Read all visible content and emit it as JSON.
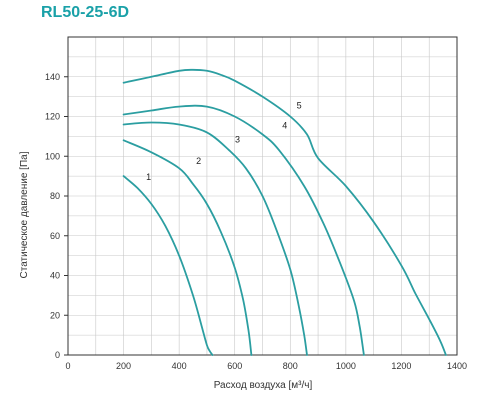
{
  "page": {
    "title": "RL50-25-6D"
  },
  "chart_data": {
    "type": "line",
    "title": "RL50-25-6D",
    "xlabel": "Расход воздуха [м³/ч]",
    "ylabel": "Статическое давление [Па]",
    "xlim": [
      0,
      1400
    ],
    "ylim": [
      0,
      160
    ],
    "xticks": [
      0,
      200,
      400,
      600,
      800,
      1000,
      1200,
      1400
    ],
    "yticks": [
      0,
      20,
      40,
      60,
      80,
      100,
      120,
      140
    ],
    "grid": true,
    "line_color": "#2b9ea1",
    "series": [
      {
        "name": "1",
        "x": [
          200,
          250,
          300,
          350,
          400,
          450,
          480,
          500,
          510,
          520
        ],
        "y": [
          90,
          84,
          76,
          65,
          50,
          30,
          15,
          5,
          2,
          0
        ]
      },
      {
        "name": "2",
        "x": [
          200,
          300,
          400,
          450,
          500,
          550,
          600,
          630,
          650,
          660
        ],
        "y": [
          108,
          102,
          94,
          86,
          76,
          62,
          44,
          28,
          12,
          0
        ]
      },
      {
        "name": "3",
        "x": [
          200,
          300,
          400,
          500,
          580,
          640,
          700,
          750,
          800,
          830,
          850,
          860
        ],
        "y": [
          116,
          117,
          116,
          112,
          103,
          94,
          80,
          63,
          43,
          25,
          10,
          0
        ]
      },
      {
        "name": "4",
        "x": [
          200,
          300,
          400,
          500,
          600,
          700,
          760,
          850,
          920,
          980,
          1030,
          1050,
          1065
        ],
        "y": [
          121,
          123,
          125,
          125,
          120,
          111,
          103,
          85,
          66,
          46,
          27,
          14,
          0
        ]
      },
      {
        "name": "5",
        "x": [
          200,
          300,
          400,
          450,
          500,
          550,
          600,
          700,
          800,
          860,
          900,
          1000,
          1100,
          1200,
          1250,
          1300,
          1340,
          1360
        ],
        "y": [
          137,
          140,
          143,
          143.5,
          143,
          141,
          138,
          130,
          120,
          111,
          99,
          85,
          67,
          45,
          31,
          18,
          7,
          0
        ]
      }
    ]
  }
}
